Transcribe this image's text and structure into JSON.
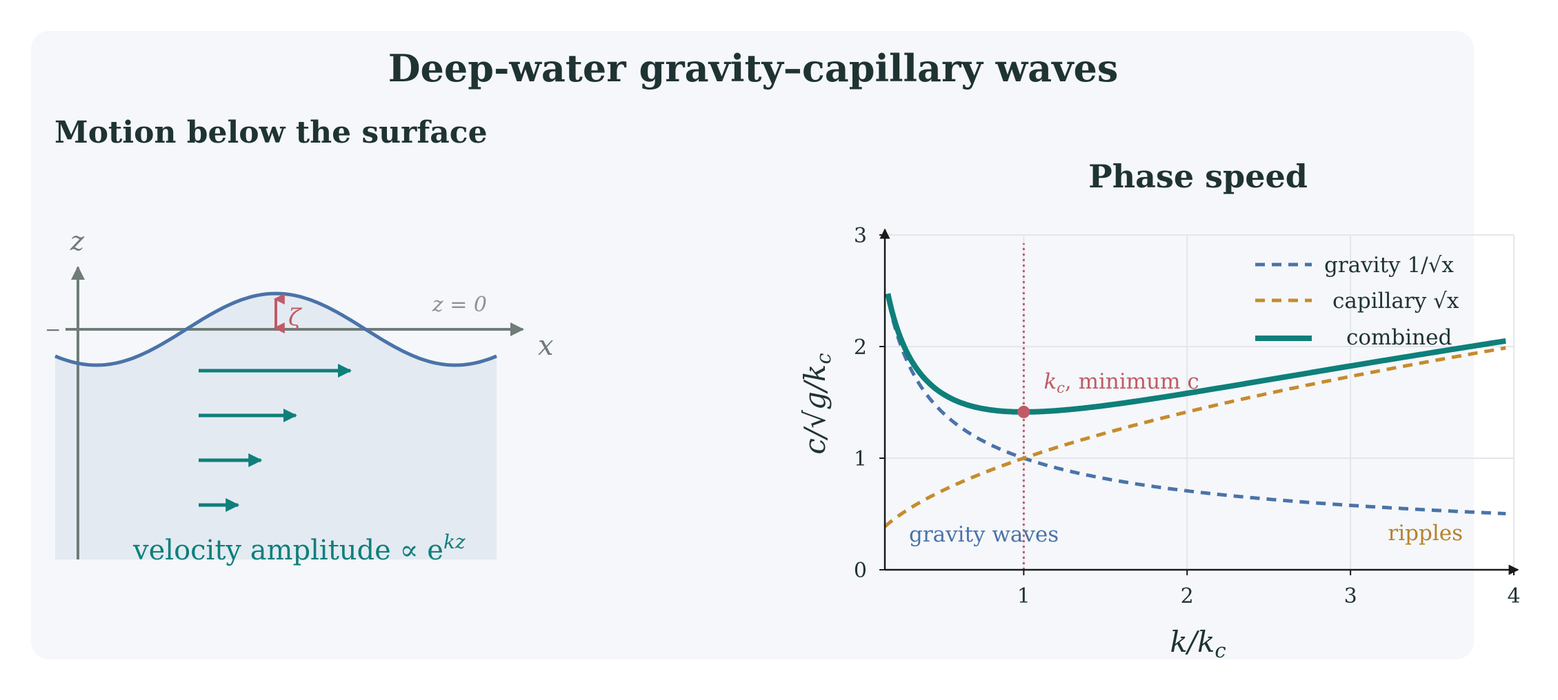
{
  "title": "Deep-water gravity–capillary waves",
  "colors": {
    "background": "#ffffff",
    "panel": "#f5f7fa",
    "ink": "#1f3333",
    "axis_gray": "#6f7c78",
    "water": "#e4eaf2",
    "surface": "#4a73a8",
    "teal": "#0e7f7a",
    "gold": "#c58c2c",
    "red": "#bf5b66"
  },
  "left": {
    "heading": "Motion below the surface",
    "axis_x": "x",
    "axis_z": "z",
    "surface_label": "z = 0",
    "zeta_label": "ζ",
    "tick_label": "−",
    "velocity_label": "velocity amplitude ∝ e",
    "velocity_exponent": "kz",
    "arrow_amplitudes": [
      1.0,
      0.64,
      0.41,
      0.26
    ]
  },
  "right": {
    "heading": "Phase speed",
    "chart_data": {
      "type": "line",
      "xlabel": "k/k",
      "xlabel_sub": "c",
      "ylabel": "c/√g/k",
      "ylabel_sub": "c",
      "xlim": [
        0.15,
        4.0
      ],
      "ylim": [
        0,
        3
      ],
      "x_ticks": [
        1,
        2,
        3,
        4
      ],
      "y_ticks": [
        0,
        1,
        2,
        3
      ],
      "grid": true,
      "legend_position": "top-right",
      "series": [
        {
          "name": "gravity 1/√x",
          "formula": "1/sqrt(x)",
          "style": "dashed",
          "color": "#4a73a8"
        },
        {
          "name": "capillary √x",
          "formula": "sqrt(x)",
          "style": "dashed",
          "color": "#c58c2c"
        },
        {
          "name": "combined",
          "formula": "sqrt(x + 1/x)",
          "style": "solid",
          "color": "#0e7f7a"
        }
      ],
      "vline_x": 1,
      "minimum_point": {
        "x": 1,
        "y": 1.414
      },
      "annotations": {
        "minimum": {
          "symbol": "k",
          "sub": "c",
          "text": ", minimum c"
        },
        "left_regime": "gravity waves",
        "right_regime": "ripples"
      }
    }
  }
}
